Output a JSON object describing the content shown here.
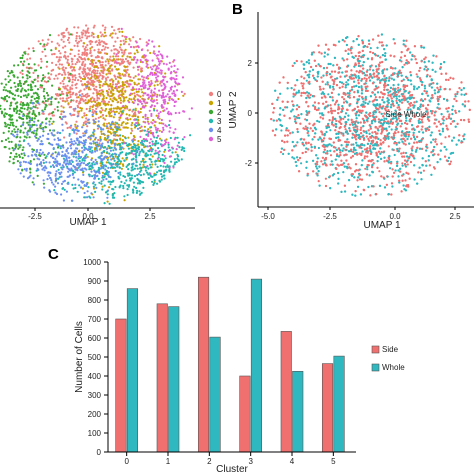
{
  "panel_labels": {
    "b": "B",
    "c": "C"
  },
  "chart_data": [
    {
      "panel": "A",
      "type": "scatter",
      "xlabel": "UMAP 1",
      "ylabel": "",
      "xticks": [
        "-2.5",
        "0.0",
        "2.5"
      ],
      "legend": {
        "placement": "right",
        "entries": [
          {
            "label": "0",
            "color": "#f08080"
          },
          {
            "label": "1",
            "color": "#c8a400"
          },
          {
            "label": "2",
            "color": "#3aa832"
          },
          {
            "label": "3",
            "color": "#20b8b0"
          },
          {
            "label": "4",
            "color": "#6b8ef0"
          },
          {
            "label": "5",
            "color": "#e060d8"
          }
        ]
      }
    },
    {
      "panel": "B",
      "type": "scatter",
      "xlabel": "UMAP 1",
      "ylabel": "UMAP 2",
      "xticks": [
        "-5.0",
        "-2.5",
        "0.0",
        "2.5"
      ],
      "yticks": [
        "2",
        "0",
        "-2"
      ],
      "annotation": "Side Whole",
      "series_colors": {
        "Side": "#f07070",
        "Whole": "#30b8c0"
      }
    },
    {
      "panel": "C",
      "type": "bar",
      "categories": [
        "0",
        "1",
        "2",
        "3",
        "4",
        "5"
      ],
      "series": [
        {
          "name": "Side",
          "color": "#f07070",
          "values": [
            700,
            780,
            920,
            400,
            635,
            465
          ]
        },
        {
          "name": "Whole",
          "color": "#30b8c0",
          "values": [
            860,
            765,
            605,
            910,
            425,
            505
          ]
        }
      ],
      "xlabel": "Cluster",
      "ylabel": "Number of Cells",
      "ylim": [
        0,
        1000
      ],
      "yticks": [
        "0",
        "100",
        "200",
        "300",
        "400",
        "500",
        "600",
        "700",
        "800",
        "900",
        "1000"
      ],
      "legend": {
        "placement": "right"
      }
    }
  ]
}
